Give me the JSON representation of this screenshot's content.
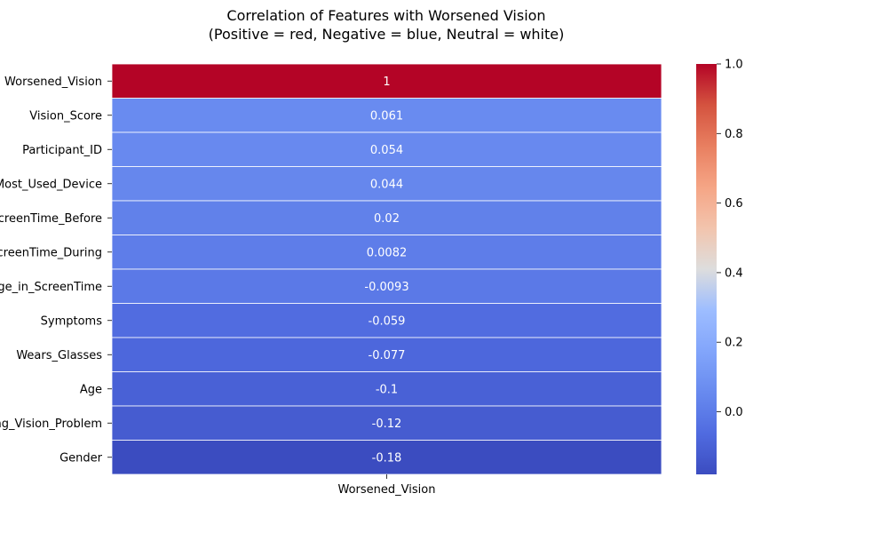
{
  "chart_data": {
    "type": "heatmap",
    "title_line1": "Correlation of Features with Worsened Vision",
    "title_line2": "(Positive = red, Negative = blue, Neutral = white)",
    "xlabel": "",
    "ylabel": "",
    "columns": [
      "Worsened_Vision"
    ],
    "rows": [
      {
        "label": "Worsened_Vision",
        "value": 1,
        "annotation": "1"
      },
      {
        "label": "Vision_Score",
        "value": 0.061,
        "annotation": "0.061"
      },
      {
        "label": "Participant_ID",
        "value": 0.054,
        "annotation": "0.054"
      },
      {
        "label": "Most_Used_Device",
        "value": 0.044,
        "annotation": "0.044"
      },
      {
        "label": "ScreenTime_Before",
        "value": 0.02,
        "annotation": "0.02"
      },
      {
        "label": "ScreenTime_During",
        "value": 0.0082,
        "annotation": "0.0082"
      },
      {
        "label": "Change_in_ScreenTime",
        "value": -0.0093,
        "annotation": "-0.0093"
      },
      {
        "label": "Symptoms",
        "value": -0.059,
        "annotation": "-0.059"
      },
      {
        "label": "Wears_Glasses",
        "value": -0.077,
        "annotation": "-0.077"
      },
      {
        "label": "Age",
        "value": -0.1,
        "annotation": "-0.1"
      },
      {
        "label": "Existing_Vision_Problem",
        "value": -0.12,
        "annotation": "-0.12"
      },
      {
        "label": "Gender",
        "value": -0.18,
        "annotation": "-0.18"
      }
    ],
    "colormap": "coolwarm",
    "vmin": -0.18,
    "vmax": 1.0,
    "colorbar": {
      "ticks": [
        0.0,
        0.2,
        0.4,
        0.6,
        0.8,
        1.0
      ],
      "tick_labels": [
        "0.0",
        "0.2",
        "0.4",
        "0.6",
        "0.8",
        "1.0"
      ]
    }
  }
}
